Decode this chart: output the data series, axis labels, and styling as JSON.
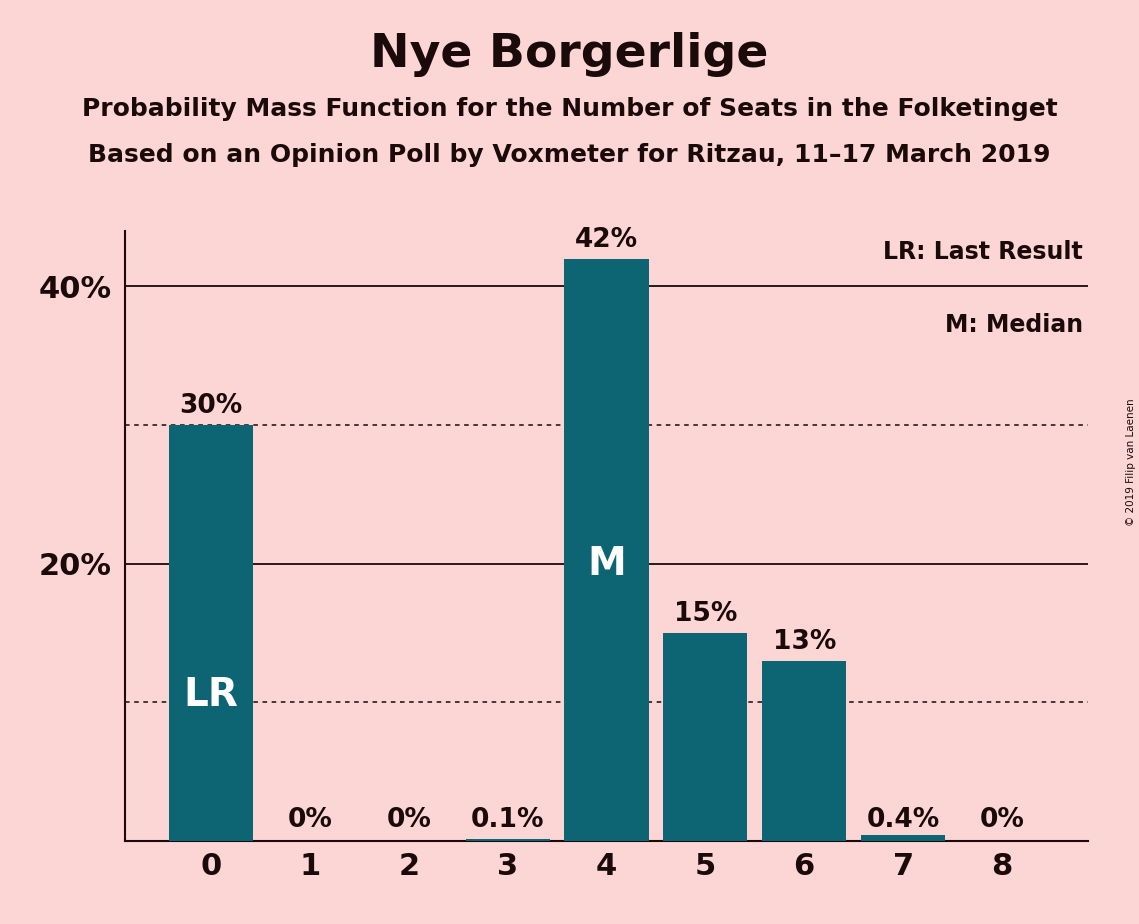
{
  "title": "Nye Borgerlige",
  "subtitle1": "Probability Mass Function for the Number of Seats in the Folketinget",
  "subtitle2": "Based on an Opinion Poll by Voxmeter for Ritzau, 11–17 March 2019",
  "copyright": "© 2019 Filip van Laenen",
  "categories": [
    0,
    1,
    2,
    3,
    4,
    5,
    6,
    7,
    8
  ],
  "values": [
    0.3,
    0.0,
    0.0,
    0.001,
    0.42,
    0.15,
    0.13,
    0.004,
    0.0
  ],
  "bar_labels": [
    "30%",
    "0%",
    "0%",
    "0.1%",
    "42%",
    "15%",
    "13%",
    "0.4%",
    "0%"
  ],
  "bar_color": "#0d6472",
  "background_color": "#fcd5d5",
  "label_color_outside": "#1a0a0a",
  "label_color_inside": "#ffffff",
  "lr_bar_index": 0,
  "median_bar_index": 4,
  "lr_label": "LR",
  "median_label": "M",
  "solid_yticks": [
    0.2,
    0.4
  ],
  "dotted_yticks": [
    0.1,
    0.3
  ],
  "ylim": [
    0,
    0.44
  ],
  "legend_lr": "LR: Last Result",
  "legend_m": "M: Median",
  "title_fontsize": 34,
  "subtitle_fontsize": 18,
  "bar_label_fontsize": 19,
  "axis_label_fontsize": 22,
  "lr_fontsize": 28,
  "m_fontsize": 28
}
